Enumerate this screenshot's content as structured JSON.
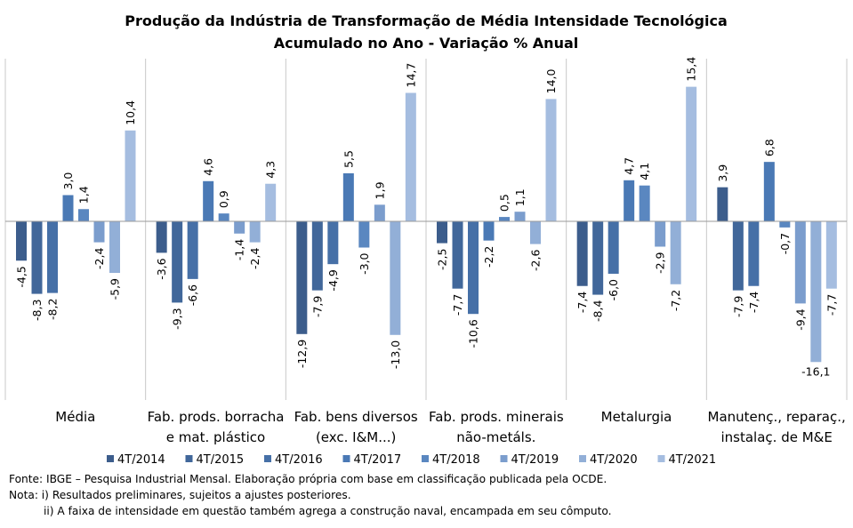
{
  "chart_data": {
    "type": "bar",
    "title": [
      "Produção da Indústria de Transformação de Média Intensidade Tecnológica",
      "Acumulado no Ano - Variação % Anual"
    ],
    "categories": [
      [
        "Média"
      ],
      [
        "Fab. prods. borracha",
        "e mat. plástico"
      ],
      [
        "Fab. bens diversos",
        "(exc. I&M...)"
      ],
      [
        "Fab. prods. minerais",
        "não-metáls."
      ],
      [
        "Metalurgia"
      ],
      [
        "Manutenç., reparaç.,",
        "instalaç. de M&E"
      ]
    ],
    "series": [
      {
        "name": "4T/2014",
        "color": "#3c5d8c",
        "values": [
          -4.5,
          -3.6,
          -12.9,
          -2.5,
          -7.4,
          3.9
        ]
      },
      {
        "name": "4T/2015",
        "color": "#41679a",
        "values": [
          -8.3,
          -9.3,
          -7.9,
          -7.7,
          -8.4,
          -7.9
        ]
      },
      {
        "name": "4T/2016",
        "color": "#4670a7",
        "values": [
          -8.2,
          -6.6,
          -4.9,
          -10.6,
          -6.0,
          -7.4
        ]
      },
      {
        "name": "4T/2017",
        "color": "#4a79b5",
        "values": [
          3.0,
          4.6,
          5.5,
          -2.2,
          4.7,
          6.8
        ]
      },
      {
        "name": "4T/2018",
        "color": "#5a87c0",
        "values": [
          1.4,
          0.9,
          -3.0,
          0.5,
          4.1,
          -0.7
        ]
      },
      {
        "name": "4T/2019",
        "color": "#7b9dcd",
        "values": [
          -2.4,
          -1.4,
          1.9,
          1.1,
          -2.9,
          -9.4
        ]
      },
      {
        "name": "4T/2020",
        "color": "#92afd7",
        "values": [
          -5.9,
          -2.4,
          -13.0,
          -2.6,
          -7.2,
          -16.1
        ]
      },
      {
        "name": "4T/2021",
        "color": "#a5bde0",
        "values": [
          10.4,
          4.3,
          14.7,
          14.0,
          15.4,
          -7.7
        ]
      }
    ],
    "ylim": [
      -16.1,
      15.4
    ],
    "grid": false,
    "legend": "bottom"
  },
  "notes": {
    "source": "Fonte: IBGE – Pesquisa Industrial Mensal. Elaboração própria com base em classificação publicada pela OCDE.",
    "note1": "Nota: i) Resultados preliminares, sujeitos a ajustes posteriores.",
    "note2": "ii) A faixa de intensidade em questão também agrega a construção naval, encampada em seu cômputo."
  }
}
